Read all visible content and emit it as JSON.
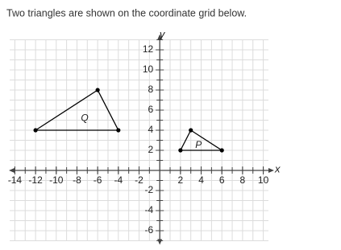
{
  "chart_data": {
    "type": "polygon",
    "title": "Two triangles are shown on the coordinate grid below.",
    "x_label": "x",
    "y_label": "y",
    "xlim": [
      -14.5,
      10.5
    ],
    "ylim": [
      -7,
      13
    ],
    "xticks": [
      -14,
      -12,
      -10,
      -8,
      -6,
      -4,
      -2,
      2,
      4,
      6,
      8,
      10
    ],
    "yticks": [
      -6,
      -4,
      -2,
      2,
      4,
      6,
      8,
      10,
      12
    ],
    "grid": true,
    "series": [
      {
        "name": "Q",
        "color": "#000000",
        "x": [
          -12,
          -6,
          -4
        ],
        "values": [
          4,
          8,
          4
        ]
      },
      {
        "name": "P",
        "color": "#000000",
        "x": [
          2,
          3,
          6
        ],
        "values": [
          2,
          4,
          2
        ]
      }
    ]
  }
}
